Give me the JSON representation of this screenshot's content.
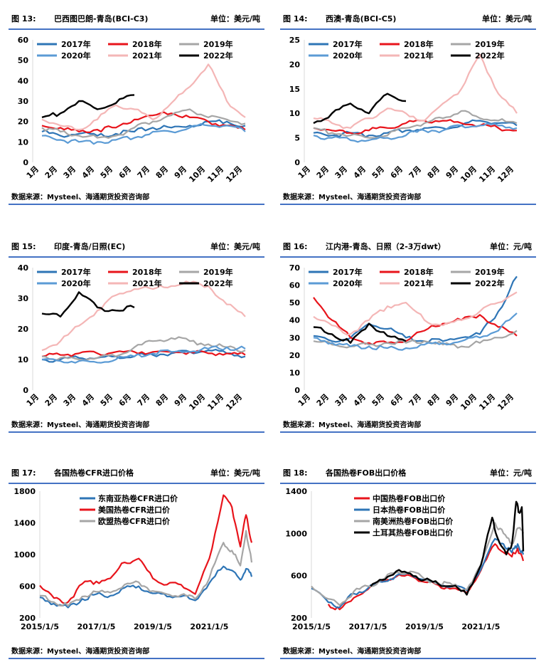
{
  "source_label": "数据来源：Mysteel、海通期货投资咨询部",
  "colors": {
    "2017": "#2e75b6",
    "2018": "#e8141b",
    "2019": "#a6a6a6",
    "2020": "#5b9bd5",
    "2021": "#f4b6b6",
    "2022": "#000000",
    "accent": "#4472c4"
  },
  "month_labels": [
    "1月",
    "2月",
    "3月",
    "4月",
    "5月",
    "6月",
    "7月",
    "8月",
    "9月",
    "10月",
    "11月",
    "12月"
  ],
  "chart_data": [
    {
      "id": "fig13",
      "type": "line",
      "number": "图 13:",
      "title": "巴西图巴朗-青岛(BCI-C3)",
      "unit": "单位：美元/吨",
      "ylim": [
        0,
        60
      ],
      "yticks": [
        0,
        10,
        20,
        30,
        40,
        50,
        60
      ],
      "legend": [
        "2017年",
        "2018年",
        "2019年",
        "2020年",
        "2021年",
        "2022年"
      ],
      "series": [
        {
          "name": "2017年",
          "key": "2017",
          "values": [
            15,
            13,
            14,
            13,
            14,
            15,
            17,
            17,
            18,
            20,
            20,
            18
          ]
        },
        {
          "name": "2018年",
          "key": "2018",
          "values": [
            18,
            17,
            15,
            16,
            17,
            21,
            23,
            24,
            22,
            20,
            18,
            16
          ]
        },
        {
          "name": "2019年",
          "key": "2019",
          "values": [
            17,
            15,
            13,
            12,
            13,
            17,
            20,
            23,
            26,
            22,
            21,
            19
          ]
        },
        {
          "name": "2020年",
          "key": "2020",
          "values": [
            13,
            11,
            10,
            10,
            11,
            12,
            15,
            15,
            17,
            18,
            18,
            15
          ]
        },
        {
          "name": "2021年",
          "key": "2021",
          "values": [
            21,
            18,
            16,
            21,
            28,
            26,
            21,
            29,
            37,
            48,
            30,
            22
          ]
        },
        {
          "name": "2022年",
          "key": "2022",
          "values": [
            22,
            24,
            30,
            26,
            29,
            33
          ]
        }
      ]
    },
    {
      "id": "fig14",
      "type": "line",
      "number": "图 14:",
      "title": "西澳-青岛(BCI-C5)",
      "unit": "单位：美元/吨",
      "ylim": [
        0,
        25
      ],
      "yticks": [
        0,
        5,
        10,
        15,
        20,
        25
      ],
      "legend": [
        "2017年",
        "2018年",
        "2019年",
        "2020年",
        "2021年",
        "2022年"
      ],
      "series": [
        {
          "name": "2017年",
          "key": "2017",
          "values": [
            6,
            5.5,
            6,
            5.5,
            6,
            6.5,
            7,
            7,
            7.5,
            8.5,
            8,
            7.5
          ]
        },
        {
          "name": "2018年",
          "key": "2018",
          "values": [
            7,
            6.5,
            6,
            6.5,
            7,
            8,
            8.5,
            8.5,
            8,
            7.5,
            7,
            6.5
          ]
        },
        {
          "name": "2019年",
          "key": "2019",
          "values": [
            7,
            6,
            5.5,
            5,
            5.5,
            7,
            8,
            9,
            10.5,
            9,
            8.5,
            8
          ]
        },
        {
          "name": "2020年",
          "key": "2020",
          "values": [
            5.5,
            5,
            4.5,
            4.5,
            5,
            5.5,
            6.5,
            6.5,
            7.5,
            7.5,
            7.5,
            7
          ]
        },
        {
          "name": "2021年",
          "key": "2021",
          "values": [
            9,
            8,
            7,
            9,
            11,
            10,
            8.5,
            12,
            15,
            22,
            14,
            10
          ]
        },
        {
          "name": "2022年",
          "key": "2022",
          "values": [
            8,
            10,
            12,
            10,
            14,
            12.5
          ]
        }
      ]
    },
    {
      "id": "fig15",
      "type": "line",
      "number": "图 15:",
      "title": "印度-青岛/日照(EC)",
      "unit": "单位：美元/吨",
      "ylim": [
        0,
        40
      ],
      "yticks": [
        0,
        10,
        20,
        30,
        40
      ],
      "legend": [
        "2017年",
        "2018年",
        "2019年",
        "2020年",
        "2021年",
        "2022年"
      ],
      "series": [
        {
          "name": "2017年",
          "key": "2017",
          "values": [
            10,
            10,
            10.5,
            10.5,
            11,
            11,
            11.5,
            12,
            12.5,
            13,
            12,
            11
          ]
        },
        {
          "name": "2018年",
          "key": "2018",
          "values": [
            11,
            11.5,
            12,
            12,
            12.5,
            12.5,
            12.5,
            12.5,
            12.5,
            12,
            12,
            11.5
          ]
        },
        {
          "name": "2019年",
          "key": "2019",
          "values": [
            11,
            10.5,
            10,
            10.5,
            11,
            14,
            16,
            17,
            16,
            15,
            14,
            13
          ]
        },
        {
          "name": "2020年",
          "key": "2020",
          "values": [
            10,
            9.5,
            9.5,
            9,
            10,
            11,
            12,
            12.5,
            12.5,
            13.5,
            14,
            13.5
          ]
        },
        {
          "name": "2021年",
          "key": "2021",
          "values": [
            13,
            16,
            21,
            26,
            31,
            33,
            33,
            34,
            35,
            34,
            28,
            24
          ]
        },
        {
          "name": "2022年",
          "key": "2022",
          "values": [
            25,
            24,
            32,
            27,
            26,
            27
          ]
        }
      ]
    },
    {
      "id": "fig16",
      "type": "line",
      "number": "图 16:",
      "title": "江内港-青岛、日照（2-3万dwt）",
      "unit": "单位：元/吨",
      "ylim": [
        0,
        70
      ],
      "yticks": [
        0,
        10,
        20,
        30,
        40,
        50,
        60,
        70
      ],
      "legend": [
        "2017年",
        "2018年",
        "2019年",
        "2020年",
        "2021年",
        "2022年"
      ],
      "series": [
        {
          "name": "2017年",
          "key": "2017",
          "values": [
            31,
            28,
            30,
            38,
            35,
            30,
            28,
            28,
            30,
            32,
            45,
            65
          ]
        },
        {
          "name": "2018年",
          "key": "2018",
          "values": [
            53,
            40,
            30,
            27,
            27,
            28,
            34,
            38,
            40,
            43,
            36,
            31
          ]
        },
        {
          "name": "2019年",
          "key": "2019",
          "values": [
            28,
            26,
            25,
            26,
            27,
            27,
            28,
            26,
            25,
            27,
            30,
            34
          ]
        },
        {
          "name": "2020年",
          "key": "2020",
          "values": [
            30,
            27,
            25,
            25,
            24,
            24,
            26,
            27,
            28,
            30,
            34,
            44
          ]
        },
        {
          "name": "2021年",
          "key": "2021",
          "values": [
            42,
            37,
            32,
            40,
            48,
            50,
            40,
            37,
            40,
            45,
            50,
            56
          ]
        },
        {
          "name": "2022年",
          "key": "2022",
          "values": [
            36,
            32,
            27,
            38,
            31,
            28
          ]
        }
      ]
    },
    {
      "id": "fig17",
      "type": "line",
      "number": "图 17:",
      "title": "各国热卷CFR进口价格",
      "unit": "单位：美元/吨",
      "ylim": [
        200,
        1800
      ],
      "yticks": [
        200,
        600,
        1000,
        1400,
        1800
      ],
      "x_ticks": [
        "2015/1/5",
        "2017/1/5",
        "2019/1/5",
        "2021/1/5"
      ],
      "x_range_years": [
        2015.0,
        2022.6
      ],
      "legend": [
        "东南亚热卷CFR进口价",
        "美国热卷CFR进口价",
        "欧盟热卷CFR进口价"
      ],
      "series": [
        {
          "name": "东南亚热卷CFR进口价",
          "key": "2017",
          "x": [
            2015.0,
            2015.5,
            2016.0,
            2016.5,
            2017.0,
            2017.5,
            2018.0,
            2018.5,
            2019.0,
            2019.5,
            2020.0,
            2020.5,
            2021.0,
            2021.5,
            2021.8,
            2022.1,
            2022.3,
            2022.5
          ],
          "values": [
            460,
            380,
            330,
            440,
            500,
            480,
            580,
            600,
            510,
            470,
            470,
            420,
            640,
            850,
            800,
            680,
            820,
            720
          ]
        },
        {
          "name": "美国热卷CFR进口价",
          "key": "2018",
          "x": [
            2015.0,
            2015.5,
            2016.0,
            2016.5,
            2017.0,
            2017.5,
            2018.0,
            2018.5,
            2019.0,
            2019.5,
            2020.0,
            2020.5,
            2021.0,
            2021.5,
            2021.8,
            2022.1,
            2022.3,
            2022.5
          ],
          "values": [
            610,
            450,
            400,
            630,
            660,
            700,
            900,
            950,
            700,
            620,
            620,
            500,
            950,
            1750,
            1600,
            1100,
            1500,
            1150
          ]
        },
        {
          "name": "欧盟热卷CFR进口价",
          "key": "2019",
          "x": [
            2015.0,
            2015.5,
            2016.0,
            2016.5,
            2017.0,
            2017.5,
            2018.0,
            2018.5,
            2019.0,
            2019.5,
            2020.0,
            2020.5,
            2021.0,
            2021.5,
            2021.8,
            2022.1,
            2022.3,
            2022.5
          ],
          "values": [
            480,
            400,
            350,
            470,
            530,
            520,
            620,
            650,
            540,
            500,
            490,
            440,
            700,
            1150,
            1050,
            860,
            1300,
            900
          ]
        }
      ]
    },
    {
      "id": "fig18",
      "type": "line",
      "number": "图 18:",
      "title": "各国热卷FOB出口价格",
      "unit": "单位：元/吨",
      "ylim": [
        200,
        1400
      ],
      "yticks": [
        200,
        600,
        1000,
        1400
      ],
      "x_ticks": [
        "2015/1/5",
        "2017/1/5",
        "2019/1/5",
        "2021/1/5"
      ],
      "x_range_years": [
        2015.0,
        2022.6
      ],
      "legend": [
        "中国热卷FOB出口价",
        "日本热卷FOB出口价",
        "南美洲热卷FOB出口价",
        "土耳其热卷FOB出口价"
      ],
      "series": [
        {
          "name": "中国热卷FOB出口价",
          "key": "2018",
          "x": [
            2015.6,
            2016.0,
            2016.5,
            2017.0,
            2017.5,
            2018.0,
            2018.5,
            2019.0,
            2019.5,
            2020.0,
            2020.5,
            2021.0,
            2021.5,
            2021.8,
            2022.1,
            2022.3,
            2022.5
          ],
          "values": [
            330,
            280,
            390,
            470,
            550,
            590,
            600,
            540,
            510,
            480,
            440,
            650,
            900,
            820,
            780,
            860,
            740
          ]
        },
        {
          "name": "日本热卷FOB出口价",
          "key": "2017",
          "x": [
            2015.0,
            2015.5,
            2016.0,
            2016.5,
            2017.0,
            2017.5,
            2018.0,
            2018.5,
            2019.0,
            2019.5,
            2020.0,
            2020.5,
            2021.0,
            2021.5,
            2021.8,
            2022.1,
            2022.3,
            2022.5
          ],
          "values": [
            480,
            380,
            300,
            430,
            480,
            540,
            600,
            620,
            560,
            520,
            500,
            460,
            660,
            950,
            900,
            820,
            900,
            800
          ]
        },
        {
          "name": "南美洲热卷FOB出口价",
          "key": "2019",
          "x": [
            2015.0,
            2015.5,
            2016.0,
            2016.5,
            2017.0,
            2017.5,
            2018.0,
            2018.5,
            2019.0,
            2019.5,
            2020.0,
            2020.5,
            2021.0,
            2021.5,
            2021.8,
            2022.1,
            2022.3,
            2022.5
          ],
          "values": [
            500,
            390,
            320,
            450,
            500,
            560,
            630,
            640,
            570,
            530,
            510,
            470,
            700,
            1100,
            1000,
            900,
            1050,
            1000
          ]
        },
        {
          "name": "土耳其热卷FOB出口价",
          "key": "2022",
          "x": [
            2017.1,
            2017.5,
            2018.0,
            2018.5,
            2019.0,
            2019.5,
            2020.0,
            2020.5,
            2021.0,
            2021.4,
            2021.6,
            2021.9,
            2022.1,
            2022.25,
            2022.35,
            2022.45,
            2022.5
          ],
          "values": [
            500,
            560,
            640,
            620,
            560,
            520,
            500,
            420,
            700,
            1150,
            950,
            800,
            900,
            1300,
            1200,
            1250,
            830
          ]
        }
      ]
    }
  ]
}
